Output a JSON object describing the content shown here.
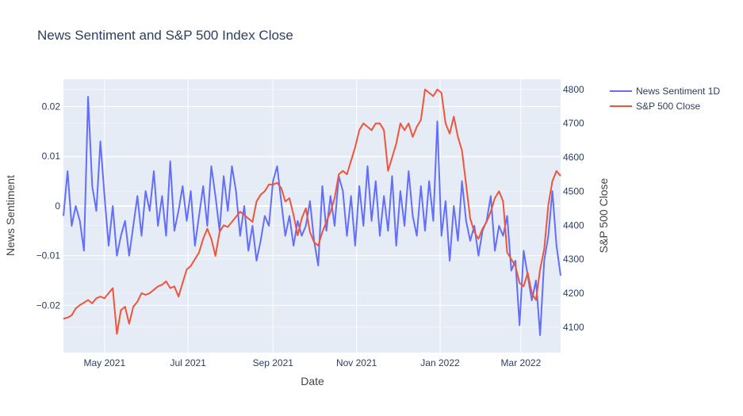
{
  "chart_data": {
    "type": "line",
    "title": "News Sentiment and S&P 500 Index Close",
    "xlabel": "Date",
    "ylabel_left": "News Sentiment",
    "ylabel_right": "S&P 500 Close",
    "x_ticks": [
      "May 2021",
      "Jul 2021",
      "Sep 2021",
      "Nov 2021",
      "Jan 2022",
      "Mar 2022"
    ],
    "y_left_ticks": [
      "0.02",
      "0.01",
      "0",
      "−0.01",
      "−0.02"
    ],
    "y_right_ticks": [
      "4800",
      "4700",
      "4600",
      "4500",
      "4400",
      "4300",
      "4200",
      "4100"
    ],
    "xlim": [
      "2021-04-01",
      "2022-03-30"
    ],
    "ylim_left": [
      -0.0295,
      0.0255
    ],
    "ylim_right": [
      4025,
      4830
    ],
    "grid": true,
    "legend_position": "top-right",
    "series": [
      {
        "name": "News Sentiment 1D",
        "axis": "left",
        "color": "#636efa",
        "x": [
          "2021-04-01",
          "2021-04-04",
          "2021-04-07",
          "2021-04-10",
          "2021-04-13",
          "2021-04-16",
          "2021-04-19",
          "2021-04-22",
          "2021-04-25",
          "2021-04-28",
          "2021-05-01",
          "2021-05-04",
          "2021-05-07",
          "2021-05-10",
          "2021-05-13",
          "2021-05-16",
          "2021-05-19",
          "2021-05-22",
          "2021-05-25",
          "2021-05-28",
          "2021-05-31",
          "2021-06-03",
          "2021-06-06",
          "2021-06-09",
          "2021-06-12",
          "2021-06-15",
          "2021-06-18",
          "2021-06-21",
          "2021-06-24",
          "2021-06-27",
          "2021-06-30",
          "2021-07-03",
          "2021-07-06",
          "2021-07-09",
          "2021-07-12",
          "2021-07-15",
          "2021-07-18",
          "2021-07-21",
          "2021-07-24",
          "2021-07-27",
          "2021-07-30",
          "2021-08-02",
          "2021-08-05",
          "2021-08-08",
          "2021-08-11",
          "2021-08-14",
          "2021-08-17",
          "2021-08-20",
          "2021-08-23",
          "2021-08-26",
          "2021-08-29",
          "2021-09-01",
          "2021-09-04",
          "2021-09-07",
          "2021-09-10",
          "2021-09-13",
          "2021-09-16",
          "2021-09-19",
          "2021-09-22",
          "2021-09-25",
          "2021-09-28",
          "2021-10-01",
          "2021-10-04",
          "2021-10-07",
          "2021-10-10",
          "2021-10-13",
          "2021-10-16",
          "2021-10-19",
          "2021-10-22",
          "2021-10-25",
          "2021-10-28",
          "2021-10-31",
          "2021-11-03",
          "2021-11-06",
          "2021-11-09",
          "2021-11-12",
          "2021-11-15",
          "2021-11-18",
          "2021-11-21",
          "2021-11-24",
          "2021-11-27",
          "2021-11-30",
          "2021-12-03",
          "2021-12-06",
          "2021-12-09",
          "2021-12-12",
          "2021-12-15",
          "2021-12-18",
          "2021-12-21",
          "2021-12-24",
          "2021-12-27",
          "2021-12-30",
          "2022-01-02",
          "2022-01-05",
          "2022-01-08",
          "2022-01-11",
          "2022-01-14",
          "2022-01-17",
          "2022-01-20",
          "2022-01-23",
          "2022-01-26",
          "2022-01-29",
          "2022-02-01",
          "2022-02-04",
          "2022-02-07",
          "2022-02-10",
          "2022-02-13",
          "2022-02-16",
          "2022-02-19",
          "2022-02-22",
          "2022-02-25",
          "2022-02-28",
          "2022-03-03",
          "2022-03-06",
          "2022-03-09",
          "2022-03-12",
          "2022-03-15",
          "2022-03-18",
          "2022-03-21",
          "2022-03-24",
          "2022-03-27",
          "2022-03-30"
        ],
        "values": [
          -0.002,
          0.007,
          -0.004,
          0.0,
          -0.003,
          -0.009,
          0.022,
          0.004,
          -0.001,
          0.013,
          0.002,
          -0.008,
          0.0,
          -0.01,
          -0.006,
          -0.003,
          -0.01,
          -0.004,
          0.002,
          -0.006,
          0.003,
          -0.001,
          0.007,
          -0.004,
          0.002,
          -0.006,
          0.009,
          -0.005,
          -0.001,
          0.004,
          -0.003,
          0.003,
          -0.008,
          -0.002,
          0.004,
          -0.004,
          0.008,
          0.002,
          -0.005,
          0.006,
          -0.001,
          0.008,
          0.003,
          -0.006,
          0.0,
          -0.009,
          -0.004,
          -0.011,
          -0.007,
          -0.002,
          -0.004,
          0.005,
          0.008,
          0.001,
          -0.006,
          -0.002,
          -0.008,
          -0.003,
          -0.006,
          -0.004,
          0.001,
          -0.007,
          -0.012,
          0.004,
          -0.005,
          0.002,
          -0.004,
          0.006,
          0.003,
          -0.006,
          0.002,
          -0.008,
          0.004,
          -0.004,
          0.008,
          -0.003,
          0.005,
          -0.006,
          0.002,
          -0.005,
          0.006,
          -0.008,
          0.003,
          -0.004,
          0.007,
          -0.002,
          -0.006,
          0.004,
          -0.005,
          0.005,
          -0.003,
          0.017,
          -0.006,
          0.001,
          -0.011,
          0.0,
          -0.007,
          0.005,
          -0.003,
          -0.007,
          -0.004,
          -0.01,
          -0.005,
          -0.003,
          0.002,
          -0.009,
          -0.004,
          -0.006,
          -0.002,
          -0.013,
          -0.011,
          -0.024,
          -0.009,
          -0.014,
          -0.019,
          -0.015,
          -0.026,
          -0.011,
          -0.006,
          0.003,
          -0.008,
          -0.014
        ]
      },
      {
        "name": "S&P 500 Close",
        "axis": "right",
        "color": "#ef553b",
        "x": [
          "2021-04-01",
          "2021-04-04",
          "2021-04-07",
          "2021-04-10",
          "2021-04-13",
          "2021-04-16",
          "2021-04-19",
          "2021-04-22",
          "2021-04-25",
          "2021-04-28",
          "2021-05-01",
          "2021-05-04",
          "2021-05-07",
          "2021-05-10",
          "2021-05-13",
          "2021-05-16",
          "2021-05-19",
          "2021-05-22",
          "2021-05-25",
          "2021-05-28",
          "2021-05-31",
          "2021-06-03",
          "2021-06-06",
          "2021-06-09",
          "2021-06-12",
          "2021-06-15",
          "2021-06-18",
          "2021-06-21",
          "2021-06-24",
          "2021-06-27",
          "2021-06-30",
          "2021-07-03",
          "2021-07-06",
          "2021-07-09",
          "2021-07-12",
          "2021-07-15",
          "2021-07-18",
          "2021-07-21",
          "2021-07-24",
          "2021-07-27",
          "2021-07-30",
          "2021-08-02",
          "2021-08-05",
          "2021-08-08",
          "2021-08-11",
          "2021-08-14",
          "2021-08-17",
          "2021-08-20",
          "2021-08-23",
          "2021-08-26",
          "2021-08-29",
          "2021-09-01",
          "2021-09-04",
          "2021-09-07",
          "2021-09-10",
          "2021-09-13",
          "2021-09-16",
          "2021-09-19",
          "2021-09-22",
          "2021-09-25",
          "2021-09-28",
          "2021-10-01",
          "2021-10-04",
          "2021-10-07",
          "2021-10-10",
          "2021-10-13",
          "2021-10-16",
          "2021-10-19",
          "2021-10-22",
          "2021-10-25",
          "2021-10-28",
          "2021-10-31",
          "2021-11-03",
          "2021-11-06",
          "2021-11-09",
          "2021-11-12",
          "2021-11-15",
          "2021-11-18",
          "2021-11-21",
          "2021-11-24",
          "2021-11-27",
          "2021-11-30",
          "2021-12-03",
          "2021-12-06",
          "2021-12-09",
          "2021-12-12",
          "2021-12-15",
          "2021-12-18",
          "2021-12-21",
          "2021-12-24",
          "2021-12-27",
          "2021-12-30",
          "2022-01-02",
          "2022-01-05",
          "2022-01-08",
          "2022-01-11",
          "2022-01-14",
          "2022-01-17",
          "2022-01-20",
          "2022-01-23",
          "2022-01-26",
          "2022-01-29",
          "2022-02-01",
          "2022-02-04",
          "2022-02-07",
          "2022-02-10",
          "2022-02-13",
          "2022-02-16",
          "2022-02-19",
          "2022-02-22",
          "2022-02-25",
          "2022-02-28",
          "2022-03-03",
          "2022-03-06",
          "2022-03-09",
          "2022-03-12",
          "2022-03-15",
          "2022-03-18",
          "2022-03-21",
          "2022-03-24",
          "2022-03-27",
          "2022-03-30"
        ],
        "values": [
          4125,
          4128,
          4135,
          4155,
          4165,
          4172,
          4180,
          4170,
          4185,
          4190,
          4185,
          4200,
          4215,
          4080,
          4150,
          4160,
          4110,
          4160,
          4175,
          4200,
          4195,
          4200,
          4210,
          4220,
          4225,
          4235,
          4215,
          4220,
          4190,
          4230,
          4270,
          4280,
          4300,
          4320,
          4360,
          4390,
          4360,
          4310,
          4380,
          4400,
          4395,
          4410,
          4425,
          4440,
          4430,
          4420,
          4410,
          4470,
          4490,
          4500,
          4520,
          4520,
          4525,
          4510,
          4470,
          4480,
          4430,
          4370,
          4420,
          4450,
          4380,
          4350,
          4340,
          4380,
          4410,
          4440,
          4480,
          4550,
          4560,
          4550,
          4590,
          4630,
          4680,
          4700,
          4690,
          4680,
          4700,
          4700,
          4680,
          4560,
          4600,
          4640,
          4700,
          4680,
          4700,
          4660,
          4690,
          4710,
          4800,
          4790,
          4780,
          4800,
          4790,
          4700,
          4670,
          4720,
          4660,
          4620,
          4520,
          4420,
          4380,
          4360,
          4390,
          4410,
          4440,
          4480,
          4500,
          4470,
          4320,
          4300,
          4280,
          4230,
          4220,
          4260,
          4200,
          4180,
          4270,
          4330,
          4460,
          4530,
          4560,
          4545
        ]
      }
    ]
  }
}
